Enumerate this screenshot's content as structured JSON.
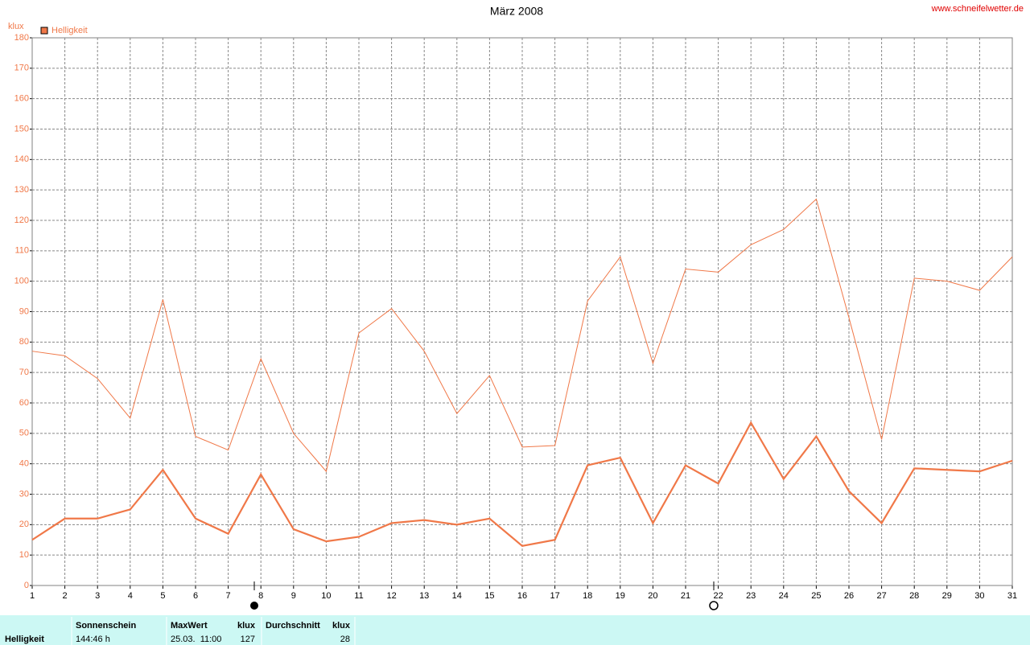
{
  "chart_data": {
    "type": "line",
    "title": "März 2008",
    "source": "www.schneifelwetter.de",
    "y_label": "klux",
    "x": [
      1,
      2,
      3,
      4,
      5,
      6,
      7,
      8,
      9,
      10,
      11,
      12,
      13,
      14,
      15,
      16,
      17,
      18,
      19,
      20,
      21,
      22,
      23,
      24,
      25,
      26,
      27,
      28,
      29,
      30,
      31
    ],
    "xlim": [
      1,
      31
    ],
    "xticks": [
      1,
      2,
      3,
      4,
      5,
      6,
      7,
      8,
      9,
      10,
      11,
      12,
      13,
      14,
      15,
      16,
      17,
      18,
      19,
      20,
      21,
      22,
      23,
      24,
      25,
      26,
      27,
      28,
      29,
      30,
      31
    ],
    "ylim": [
      0,
      180
    ],
    "yticks": [
      0,
      10,
      20,
      30,
      40,
      50,
      60,
      70,
      80,
      90,
      100,
      110,
      120,
      130,
      140,
      150,
      160,
      170,
      180
    ],
    "grid": true,
    "legend": "top-left",
    "series": [
      {
        "name": "Helligkeit",
        "color": "#f07848",
        "values": [
          15,
          22,
          22,
          25,
          38,
          22,
          17,
          36.5,
          18.5,
          14.5,
          16,
          20.5,
          21.5,
          20,
          22,
          13,
          15,
          39.5,
          42,
          20.5,
          39.5,
          33.5,
          53.5,
          35,
          49,
          31,
          20.5,
          38.5,
          38,
          37.5,
          41
        ]
      },
      {
        "color": "#f07848",
        "values": [
          77,
          75.5,
          68,
          55,
          94,
          49,
          44.5,
          74.5,
          50,
          37.5,
          83,
          91,
          77,
          56.5,
          69,
          45.5,
          46,
          93.5,
          108,
          73,
          104,
          103,
          112,
          117,
          127,
          88,
          48,
          101,
          100,
          97,
          108
        ]
      }
    ]
  },
  "table": {
    "row_label": "Helligkeit",
    "headers": [
      [
        "Sonnenschein"
      ],
      [
        "MaxWert",
        "klux"
      ],
      [
        "Durchschnitt",
        "klux"
      ]
    ],
    "values": [
      [
        "144:46 h"
      ],
      [
        "25.03.  11:00",
        "127"
      ],
      [
        "28"
      ]
    ]
  }
}
